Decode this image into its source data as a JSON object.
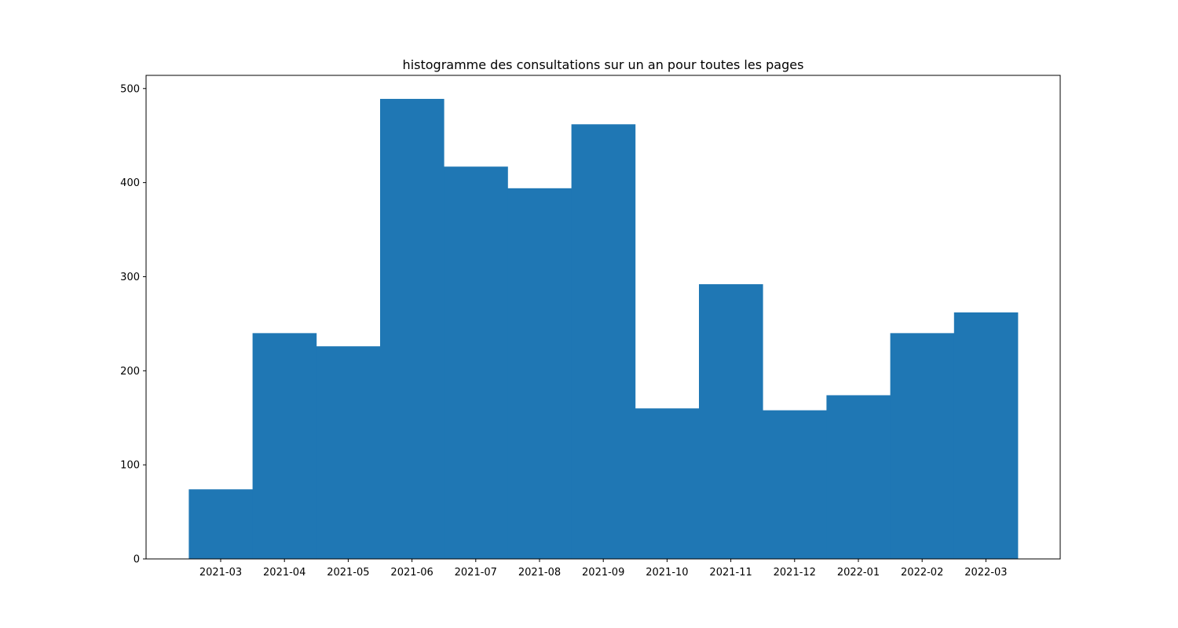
{
  "chart_data": {
    "type": "bar",
    "title": "histogramme des consultations sur un an pour toutes les pages",
    "xlabel": "",
    "ylabel": "",
    "categories": [
      "2021-03",
      "2021-04",
      "2021-05",
      "2021-06",
      "2021-07",
      "2021-08",
      "2021-09",
      "2021-10",
      "2021-11",
      "2021-12",
      "2022-01",
      "2022-02",
      "2022-03"
    ],
    "values": [
      74,
      240,
      226,
      489,
      417,
      394,
      462,
      160,
      292,
      158,
      174,
      240,
      262
    ],
    "ylim": [
      0,
      514
    ],
    "yticks": [
      0,
      100,
      200,
      300,
      400,
      500
    ],
    "grid": false,
    "legend": "none",
    "bar_color": "#1f77b4",
    "bar_gap": 0
  }
}
